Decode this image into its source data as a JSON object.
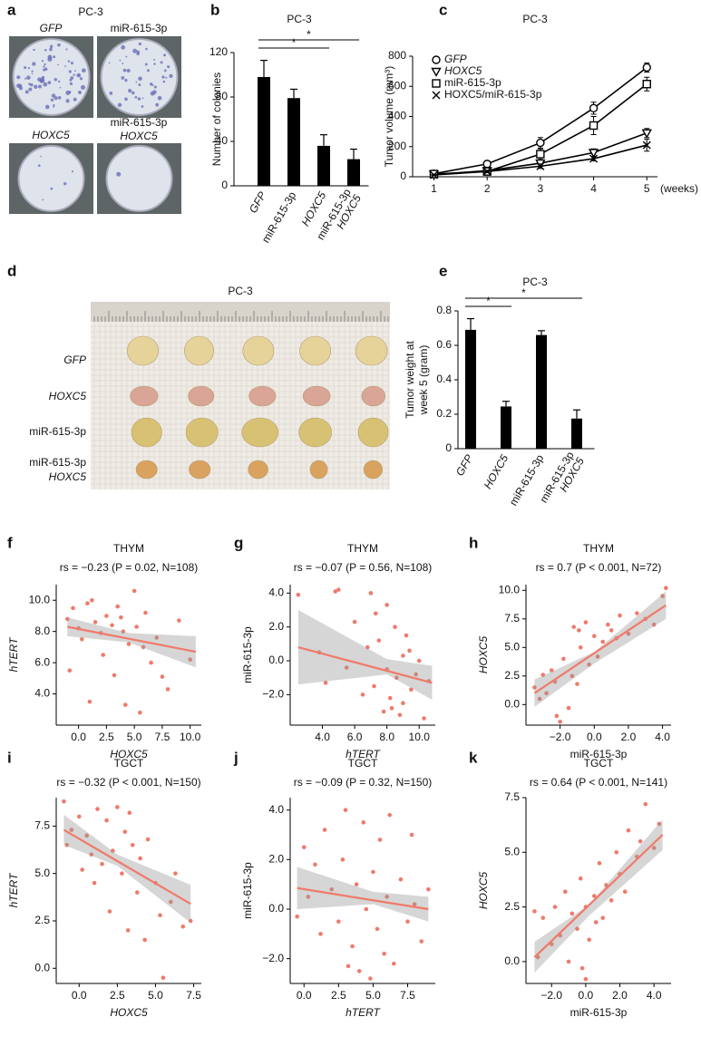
{
  "panel_a": {
    "label": "a",
    "title": "PC-3",
    "plates": [
      [
        "GFP"
      ],
      [
        "miR-615-3p"
      ],
      [
        "HOXC5"
      ],
      [
        "miR-615-3p",
        "HOXC5"
      ]
    ]
  },
  "panel_d": {
    "label": "d",
    "title": "PC-3",
    "rows": [
      [
        "GFP"
      ],
      [
        "HOXC5"
      ],
      [
        "miR-615-3p"
      ],
      [
        "miR-615-3p",
        "HOXC5"
      ]
    ]
  },
  "chart_data": [
    {
      "panel_label": "b",
      "type": "bar",
      "title": "PC-3",
      "ylabel": [
        "Number of colonies"
      ],
      "categories": [
        [
          "GFP"
        ],
        [
          "miR-615-3p"
        ],
        [
          "HOXC5"
        ],
        [
          "miR-615-3p",
          "HOXC5"
        ]
      ],
      "category_italic": [
        [
          true
        ],
        [
          false
        ],
        [
          true
        ],
        [
          false,
          true
        ]
      ],
      "values": [
        98,
        79,
        36,
        24
      ],
      "errors": [
        15,
        8,
        10,
        9
      ],
      "color": "#000000",
      "ylim": [
        0,
        120
      ],
      "yticks": [
        0,
        40,
        80,
        120
      ],
      "significance": [
        {
          "from": 0,
          "to": 3,
          "label": "*"
        },
        {
          "from": 0,
          "to": 2,
          "label": "*"
        }
      ]
    },
    {
      "panel_label": "c",
      "type": "line",
      "title": "PC-3",
      "ylabel": [
        "Tumor volume (mm³)"
      ],
      "xlabel": "(weeks)",
      "x": [
        1,
        2,
        3,
        4,
        5
      ],
      "xlim": [
        0.6,
        5.2
      ],
      "xticks": [
        1,
        2,
        3,
        4,
        5
      ],
      "ylim": [
        0,
        800
      ],
      "yticks": [
        0,
        200,
        400,
        600,
        800
      ],
      "series": [
        {
          "name": "GFP",
          "italic": true,
          "marker": "circle",
          "color": "#000000",
          "values": [
            20,
            85,
            225,
            455,
            725
          ],
          "errors": [
            5,
            20,
            35,
            40,
            30
          ]
        },
        {
          "name": "HOXC5",
          "italic": true,
          "marker": "triangle-down",
          "color": "#000000",
          "values": [
            15,
            40,
            90,
            160,
            290
          ],
          "errors": [
            4,
            8,
            20,
            25,
            30
          ]
        },
        {
          "name": "miR-615-3p",
          "italic": false,
          "marker": "square",
          "color": "#000000",
          "values": [
            18,
            35,
            150,
            340,
            615
          ],
          "errors": [
            4,
            8,
            35,
            60,
            45
          ]
        },
        {
          "name": "HOXC5/miR-615-3p",
          "italic": false,
          "marker": "x",
          "color": "#000000",
          "values": [
            12,
            35,
            70,
            120,
            210
          ],
          "errors": [
            4,
            8,
            15,
            15,
            40
          ]
        }
      ]
    },
    {
      "panel_label": "e",
      "type": "bar",
      "title": "PC-3",
      "ylabel": [
        "Tumor weight at",
        "week 5 (gram)"
      ],
      "categories": [
        [
          "GFP"
        ],
        [
          "HOXC5"
        ],
        [
          "miR-615-3p"
        ],
        [
          "miR-615-3p",
          "HOXC5"
        ]
      ],
      "category_italic": [
        [
          true
        ],
        [
          true
        ],
        [
          false
        ],
        [
          false,
          true
        ]
      ],
      "values": [
        0.69,
        0.245,
        0.66,
        0.175
      ],
      "errors": [
        0.065,
        0.03,
        0.025,
        0.05
      ],
      "color": "#000000",
      "ylim": [
        0,
        0.8
      ],
      "yticks": [
        0,
        0.2,
        0.4,
        0.6,
        0.8
      ],
      "significance": [
        {
          "from": 0,
          "to": 3,
          "label": "*"
        },
        {
          "from": 0,
          "to": 1,
          "label": "*"
        }
      ]
    },
    {
      "panel_label": "f",
      "type": "scatter",
      "title": "THYM",
      "subtitle": "rs = −0.23 (P = 0.02, N=108)",
      "xlabel": "HOXC5",
      "ylabel": [
        "hTERT"
      ],
      "xlabel_italic": true,
      "ylabel_italic": true,
      "color": "#f07a6a",
      "x": [
        -1,
        -0.5,
        0,
        0.3,
        0.8,
        1,
        1.5,
        2,
        2.2,
        2.5,
        3,
        3.2,
        3.5,
        4,
        4.2,
        4.5,
        5,
        5.2,
        5.5,
        6,
        6.5,
        7,
        7.5,
        8,
        9,
        10,
        -0.8,
        1.2,
        3.8,
        5.8
      ],
      "y": [
        8.8,
        9.5,
        8.2,
        7.5,
        9.8,
        3.5,
        8.6,
        7.9,
        6.5,
        9.0,
        8.4,
        5.2,
        9.6,
        8.0,
        3.3,
        7.2,
        10.6,
        8.3,
        2.8,
        9.2,
        6.0,
        7.6,
        5.1,
        4.3,
        8.7,
        6.2,
        5.5,
        10.0,
        8.9,
        7.0
      ],
      "fit": {
        "x": [
          -1,
          10.5
        ],
        "y": [
          8.3,
          6.7
        ]
      },
      "band": {
        "x": [
          -1,
          4.5,
          10.5
        ],
        "lower": [
          7.7,
          7.3,
          5.7
        ],
        "upper": [
          8.9,
          7.9,
          7.7
        ]
      },
      "xlim": [
        -2,
        11
      ],
      "xticks": [
        {
          "value": 0,
          "label": "0.0"
        },
        2.5,
        {
          "value": 5,
          "label": "5.0"
        },
        7.5,
        {
          "value": 10,
          "label": "10.0"
        }
      ],
      "ylim": [
        2,
        11
      ],
      "yticks": [
        {
          "value": 4,
          "label": "4.0"
        },
        {
          "value": 6,
          "label": "6.0"
        },
        {
          "value": 8,
          "label": "8.0"
        },
        {
          "value": 10,
          "label": "10.0"
        }
      ]
    },
    {
      "panel_label": "g",
      "type": "scatter",
      "title": "THYM",
      "subtitle": "rs = −0.07 (P = 0.56, N=108)",
      "xlabel": "hTERT",
      "ylabel": [
        "miR-615-3p"
      ],
      "xlabel_italic": true,
      "ylabel_italic": false,
      "color": "#f07a6a",
      "x": [
        2.5,
        3.8,
        4.2,
        5,
        5.5,
        6,
        6.5,
        6.8,
        7,
        7.2,
        7.5,
        7.8,
        8,
        8,
        8.2,
        8.5,
        8.6,
        8.8,
        9,
        9,
        9.2,
        9.5,
        9.8,
        10,
        10.3,
        10.6,
        4.8,
        7.3,
        8.3,
        9.4
      ],
      "y": [
        3.9,
        0.5,
        -1.3,
        4.2,
        -0.4,
        2.3,
        -2.0,
        0.8,
        4.0,
        -1.5,
        1.2,
        -3.0,
        3.3,
        -0.5,
        -2.2,
        2.0,
        -1.0,
        -3.2,
        0.3,
        -2.5,
        1.5,
        -1.7,
        -0.8,
        0.0,
        -3.4,
        -1.2,
        4.1,
        2.8,
        -2.8,
        0.6
      ],
      "fit": {
        "x": [
          2.5,
          10.8
        ],
        "y": [
          0.8,
          -1.3
        ]
      },
      "band": {
        "x": [
          2.5,
          8,
          10.8
        ],
        "lower": [
          -1.4,
          -0.8,
          -2.3
        ],
        "upper": [
          3.0,
          0.1,
          -0.3
        ]
      },
      "xlim": [
        2,
        11
      ],
      "xticks": [
        {
          "value": 4,
          "label": "4.0"
        },
        {
          "value": 6,
          "label": "6.0"
        },
        {
          "value": 8,
          "label": "8.0"
        },
        {
          "value": 10,
          "label": "10.0"
        }
      ],
      "ylim": [
        -3.8,
        4.5
      ],
      "yticks": [
        {
          "value": -2,
          "label": "−2.0"
        },
        {
          "value": 0,
          "label": "0.0"
        },
        {
          "value": 2,
          "label": "2.0"
        },
        {
          "value": 4,
          "label": "4.0"
        }
      ]
    },
    {
      "panel_label": "h",
      "type": "scatter",
      "title": "THYM",
      "subtitle": "rs = 0.7 (P < 0.001, N=72)",
      "xlabel": "miR-615-3p",
      "ylabel": [
        "HOXC5"
      ],
      "xlabel_italic": false,
      "ylabel_italic": true,
      "color": "#f07a6a",
      "x": [
        -3.5,
        -3.2,
        -3,
        -2.8,
        -2.5,
        -2.3,
        -2,
        -1.8,
        -1.5,
        -1.3,
        -1.2,
        -1,
        -0.8,
        -0.5,
        -0.3,
        0,
        0.2,
        0.5,
        0.8,
        1,
        1.3,
        1.5,
        2,
        2.5,
        3,
        3.5,
        4,
        4.2,
        -2.2,
        -0.9
      ],
      "y": [
        1.5,
        0.5,
        2.6,
        1.0,
        3.0,
        2.0,
        -1.5,
        4.0,
        -0.3,
        2.5,
        6.8,
        1.8,
        5.0,
        7.2,
        3.5,
        6.0,
        4.2,
        5.5,
        7.0,
        6.5,
        5.8,
        7.8,
        6.2,
        8.0,
        7.5,
        7.0,
        9.5,
        10.2,
        -1.0,
        6.5
      ],
      "fit": {
        "x": [
          -3.5,
          4.2
        ],
        "y": [
          1.0,
          8.7
        ]
      },
      "band": {
        "x": [
          -3.5,
          0,
          4.2
        ],
        "lower": [
          -0.2,
          3.6,
          7.5
        ],
        "upper": [
          2.2,
          4.6,
          9.9
        ]
      },
      "xlim": [
        -4,
        4.5
      ],
      "xticks": [
        {
          "value": -2,
          "label": "−2.0"
        },
        {
          "value": 0,
          "label": "0.0"
        },
        {
          "value": 2,
          "label": "2.0"
        },
        {
          "value": 4,
          "label": "4.0"
        }
      ],
      "ylim": [
        -1.8,
        10.5
      ],
      "yticks": [
        {
          "value": 0,
          "label": "0.0"
        },
        2.5,
        {
          "value": 5,
          "label": "5.0"
        },
        7.5,
        {
          "value": 10,
          "label": "10.0"
        }
      ]
    },
    {
      "panel_label": "i",
      "type": "scatter",
      "title": "TGCT",
      "subtitle": "rs = −0.32 (P < 0.001, N=150)",
      "xlabel": "HOXC5",
      "ylabel": [
        "hTERT"
      ],
      "xlabel_italic": true,
      "ylabel_italic": true,
      "color": "#f07a6a",
      "x": [
        -1,
        -0.8,
        -0.5,
        0,
        0.2,
        0.5,
        0.8,
        1,
        1.2,
        1.5,
        1.8,
        2,
        2.2,
        2.5,
        2.8,
        3,
        3.2,
        3.5,
        3.8,
        4,
        4.3,
        4.5,
        5,
        5.3,
        5.5,
        6,
        6.3,
        6.8,
        7.3,
        3.3
      ],
      "y": [
        8.8,
        6.5,
        7.3,
        8.0,
        5.2,
        7.0,
        6.0,
        4.5,
        8.4,
        5.5,
        7.8,
        3.0,
        6.2,
        8.5,
        5.0,
        7.2,
        2.0,
        6.5,
        4.0,
        5.8,
        1.5,
        6.8,
        4.5,
        2.8,
        -0.5,
        3.5,
        5.0,
        2.2,
        2.5,
        8.2
      ],
      "fit": {
        "x": [
          -1,
          7.3
        ],
        "y": [
          7.3,
          3.4
        ]
      },
      "band": {
        "x": [
          -1,
          2.5,
          7.3
        ],
        "lower": [
          6.5,
          5.4,
          2.4
        ],
        "upper": [
          8.1,
          6.0,
          4.4
        ]
      },
      "xlim": [
        -1.5,
        8
      ],
      "xticks": [
        {
          "value": 0,
          "label": "0.0"
        },
        2.5,
        {
          "value": 5,
          "label": "5.0"
        },
        7.5
      ],
      "ylim": [
        -0.8,
        9
      ],
      "yticks": [
        {
          "value": 0,
          "label": "0.0"
        },
        2.5,
        {
          "value": 5,
          "label": "5.0"
        },
        7.5
      ]
    },
    {
      "panel_label": "j",
      "type": "scatter",
      "title": "TGCT",
      "subtitle": "rs = −0.09 (P = 0.32, N=150)",
      "xlabel": "hTERT",
      "ylabel": [
        "miR-615-3p"
      ],
      "xlabel_italic": true,
      "ylabel_italic": false,
      "color": "#f07a6a",
      "x": [
        -0.5,
        0,
        0.3,
        0.8,
        1.2,
        1.5,
        2,
        2.5,
        2.8,
        3,
        3.5,
        3.8,
        4,
        4.3,
        4.5,
        4.8,
        5,
        5.3,
        5.5,
        5.8,
        6,
        6.5,
        7,
        7.5,
        7.8,
        8,
        8.5,
        9,
        3.2,
        6.2
      ],
      "y": [
        -0.3,
        2.5,
        0.5,
        1.8,
        -1.0,
        3.2,
        0.8,
        -0.5,
        2.0,
        4.0,
        -1.5,
        1.0,
        -2.5,
        3.5,
        0.0,
        -2.8,
        1.5,
        -0.8,
        2.8,
        -1.8,
        0.5,
        -2.2,
        1.2,
        -0.5,
        3.0,
        0.2,
        -1.3,
        0.8,
        -2.3,
        3.8
      ],
      "fit": {
        "x": [
          -0.5,
          9
        ],
        "y": [
          0.85,
          0.0
        ]
      },
      "band": {
        "x": [
          -0.5,
          5,
          9
        ],
        "lower": [
          0.0,
          0.2,
          -0.5
        ],
        "upper": [
          1.7,
          0.7,
          0.5
        ]
      },
      "xlim": [
        -1,
        9.5
      ],
      "xticks": [
        {
          "value": 0,
          "label": "0.0"
        },
        2.5,
        {
          "value": 5,
          "label": "5.0"
        },
        7.5
      ],
      "ylim": [
        -3,
        4.5
      ],
      "yticks": [
        {
          "value": -2,
          "label": "−2.0"
        },
        {
          "value": 0,
          "label": "0.0"
        },
        {
          "value": 2,
          "label": "2.0"
        },
        {
          "value": 4,
          "label": "4.0"
        }
      ]
    },
    {
      "panel_label": "k",
      "type": "scatter",
      "title": "TGCT",
      "subtitle": "rs = 0.64 (P < 0.001, N=141)",
      "xlabel": "miR-615-3p",
      "ylabel": [
        "HOXC5"
      ],
      "xlabel_italic": false,
      "ylabel_italic": true,
      "color": "#f07a6a",
      "x": [
        -3,
        -2.8,
        -2.5,
        -2,
        -1.8,
        -1.5,
        -1.2,
        -1,
        -0.8,
        -0.5,
        -0.3,
        0,
        0,
        0.2,
        0.5,
        0.8,
        1,
        1.2,
        1.5,
        1.8,
        2,
        2.3,
        2.5,
        3,
        3.2,
        3.5,
        4,
        4.3,
        -0.2,
        0.6
      ],
      "y": [
        2.3,
        0.2,
        2.0,
        0.8,
        2.5,
        1.2,
        3.2,
        0.0,
        2.2,
        1.5,
        3.8,
        -0.8,
        2.5,
        1.0,
        3.0,
        4.5,
        2.0,
        3.5,
        2.8,
        5.0,
        4.0,
        3.2,
        6.0,
        4.8,
        5.5,
        7.2,
        5.2,
        6.3,
        -0.3,
        1.8
      ],
      "fit": {
        "x": [
          -3,
          4.5
        ],
        "y": [
          0.2,
          5.8
        ]
      },
      "band": {
        "x": [
          -3,
          0.2,
          4.5
        ],
        "lower": [
          -0.5,
          2.1,
          5.1
        ],
        "upper": [
          0.9,
          2.6,
          6.5
        ]
      },
      "xlim": [
        -3.5,
        5
      ],
      "xticks": [
        {
          "value": -2,
          "label": "−2.0"
        },
        {
          "value": 0,
          "label": "0.0"
        },
        {
          "value": 2,
          "label": "2.0"
        },
        {
          "value": 4,
          "label": "4.0"
        }
      ],
      "ylim": [
        -1,
        7.5
      ],
      "yticks": [
        {
          "value": 0,
          "label": "0.0"
        },
        2.5,
        {
          "value": 5,
          "label": "5.0"
        },
        7.5
      ]
    }
  ]
}
